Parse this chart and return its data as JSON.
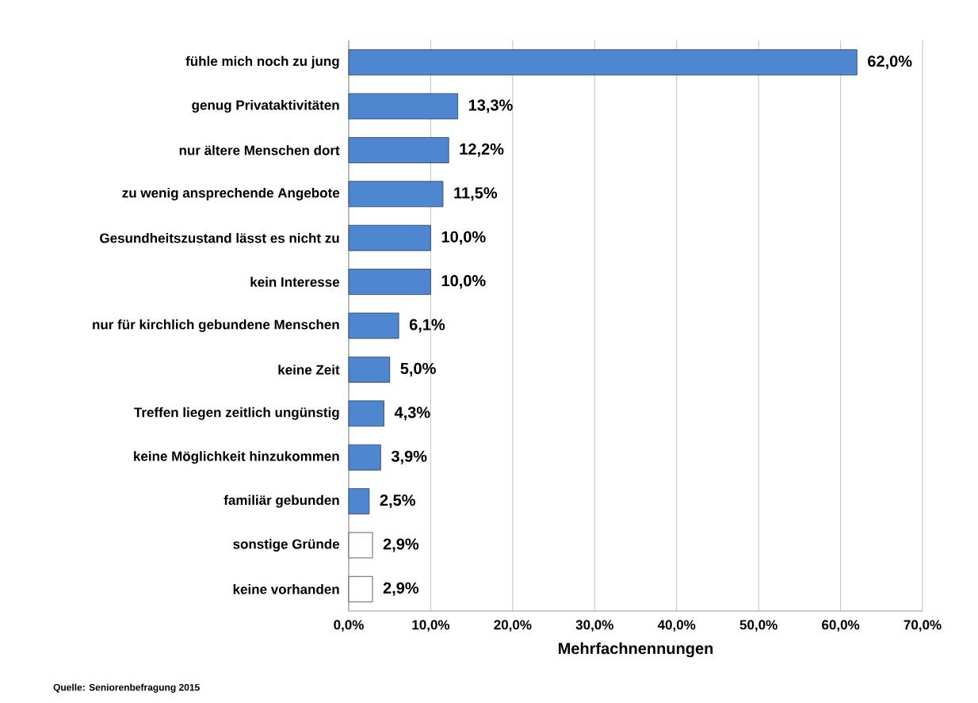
{
  "chart_data": {
    "type": "bar",
    "orientation": "horizontal",
    "xlabel": "Mehrfachnennungen",
    "categories": [
      "fühle mich noch zu jung",
      "genug Privataktivitäten",
      "nur ältere Menschen dort",
      "zu wenig ansprechende Angebote",
      "Gesundheitszustand lässt es nicht zu",
      "kein Interesse",
      "nur für kirchlich gebundene Menschen",
      "keine Zeit",
      "Treffen liegen zeitlich ungünstig",
      "keine Möglichkeit hinzukommen",
      "familiär gebunden",
      "sonstige Gründe",
      "keine vorhanden"
    ],
    "values": [
      62.0,
      13.3,
      12.2,
      11.5,
      10.0,
      10.0,
      6.1,
      5.0,
      4.3,
      3.9,
      2.5,
      2.9,
      2.9
    ],
    "value_labels": [
      "62,0%",
      "13,3%",
      "12,2%",
      "11,5%",
      "10,0%",
      "10,0%",
      "6,1%",
      "5,0%",
      "4,3%",
      "3,9%",
      "2,5%",
      "2,9%",
      "2,9%"
    ],
    "colors": [
      "#4f86d0",
      "#4f86d0",
      "#4f86d0",
      "#4f86d0",
      "#4f86d0",
      "#4f86d0",
      "#4f86d0",
      "#4f86d0",
      "#4f86d0",
      "#4f86d0",
      "#4f86d0",
      "#ffffff",
      "#ffffff"
    ],
    "xlim": [
      0,
      70
    ],
    "xticks": [
      {
        "value": 0,
        "label": "0,0%"
      },
      {
        "value": 10,
        "label": "10,0%"
      },
      {
        "value": 20,
        "label": "20,0%"
      },
      {
        "value": 30,
        "label": "30,0%"
      },
      {
        "value": 40,
        "label": "40,0%"
      },
      {
        "value": 50,
        "label": "50,0%"
      },
      {
        "value": 60,
        "label": "60,0%"
      },
      {
        "value": 70,
        "label": "70,0%"
      }
    ],
    "grid": "x",
    "annotations": [
      "Quelle: Seniorenbefragung 2015"
    ]
  }
}
